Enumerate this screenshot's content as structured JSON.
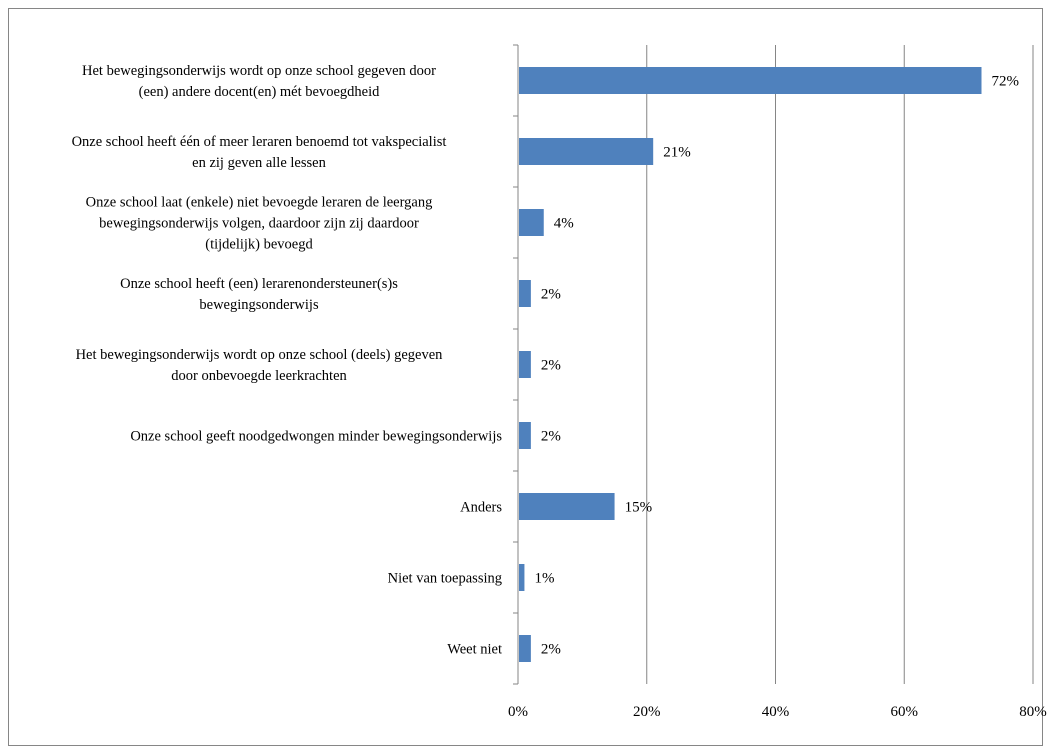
{
  "chart_data": {
    "type": "bar",
    "orientation": "horizontal",
    "categories": [
      "Het bewegingsonderwijs wordt op onze school gegeven door\n(een) andere docent(en) mét bevoegdheid",
      "Onze school heeft één of meer leraren benoemd tot vakspecialist\nen zij geven alle lessen",
      "Onze school laat (enkele) niet bevoegde leraren de leergang\nbewegingsonderwijs volgen, daardoor zijn zij daardoor\n(tijdelijk) bevoegd",
      "Onze school heeft (een) lerarenondersteuner(s)s\nbewegingsonderwijs",
      "Het bewegingsonderwijs wordt op onze school (deels) gegeven\ndoor onbevoegde leerkrachten",
      "Onze school geeft noodgedwongen minder bewegingsonderwijs",
      "Anders",
      "Niet van toepassing",
      "Weet niet"
    ],
    "values": [
      72,
      21,
      4,
      2,
      2,
      2,
      15,
      1,
      2
    ],
    "value_labels": [
      "72%",
      "21%",
      "4%",
      "2%",
      "2%",
      "2%",
      "15%",
      "1%",
      "2%"
    ],
    "bar_color": "#4f81bd",
    "xlim": [
      0,
      80
    ],
    "xticks": [
      0,
      20,
      40,
      60,
      80
    ],
    "xtick_labels": [
      "0%",
      "20%",
      "40%",
      "60%",
      "80%"
    ],
    "grid": true,
    "title": "",
    "xlabel": "",
    "ylabel": ""
  }
}
